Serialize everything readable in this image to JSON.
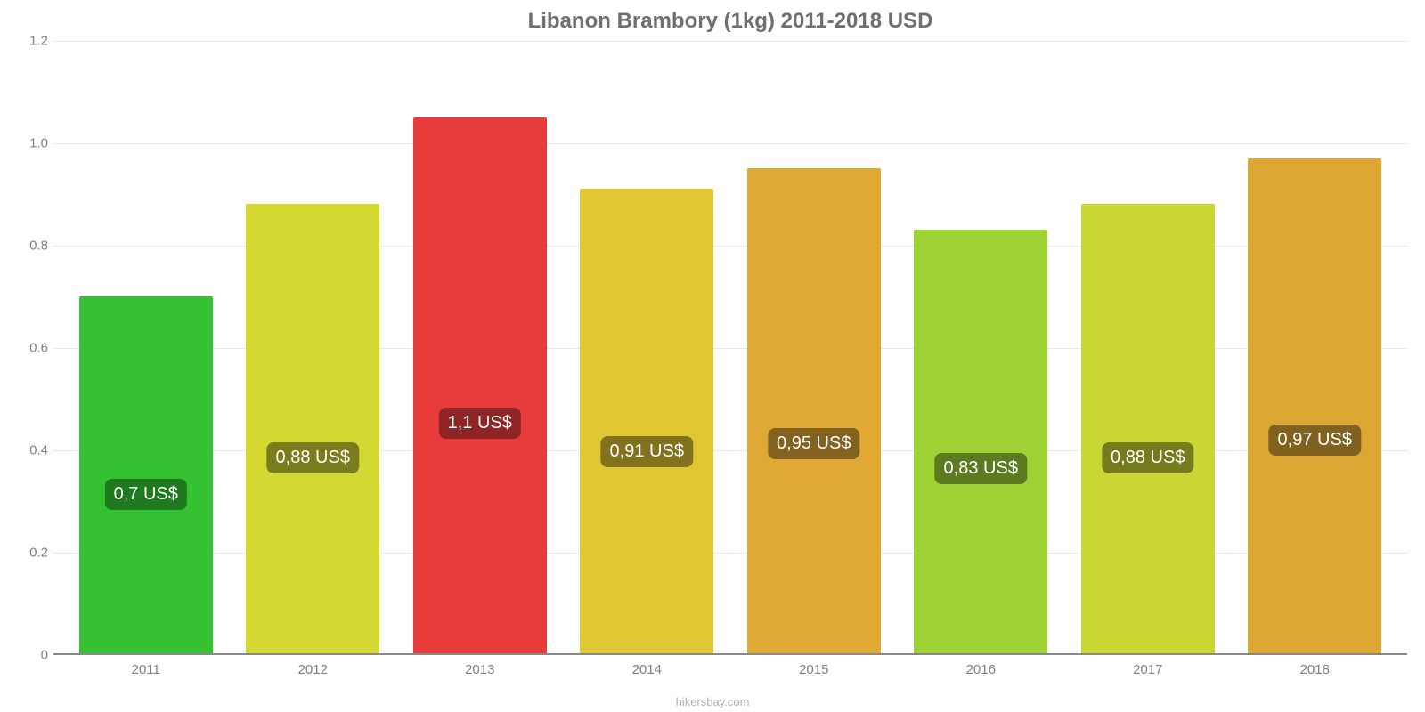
{
  "chart": {
    "type": "bar",
    "title": "Libanon Brambory (1kg) 2011-2018 USD",
    "title_fontsize": 24,
    "title_color": "#6f6f6f",
    "background_color": "#ffffff",
    "grid_color": "#e8e8e8",
    "axis_color": "#888888",
    "ylim": [
      0,
      1.2
    ],
    "ytick_step": 0.2,
    "yticks": [
      "0",
      "0.2",
      "0.4",
      "0.6",
      "0.8",
      "1.0",
      "1.2"
    ],
    "bar_width": 0.8,
    "label_fontsize": 20,
    "tick_fontsize": 15,
    "tick_color": "#808080",
    "categories": [
      "2011",
      "2012",
      "2013",
      "2014",
      "2015",
      "2016",
      "2017",
      "2018"
    ],
    "values": [
      0.7,
      0.88,
      1.05,
      0.91,
      0.95,
      0.83,
      0.88,
      0.97
    ],
    "value_labels": [
      "0,7 US$",
      "0,88 US$",
      "1,1 US$",
      "0,91 US$",
      "0,95 US$",
      "0,83 US$",
      "0,88 US$",
      "0,97 US$"
    ],
    "bar_colors": [
      "#34c233",
      "#d3d832",
      "#e83b3b",
      "#e0c633",
      "#e0a933",
      "#9ed134",
      "#cad633",
      "#dca833"
    ],
    "label_bg_colors": [
      "#1f7a1f",
      "#7a7d1e",
      "#8f2424",
      "#82721e",
      "#82621e",
      "#5c7a1f",
      "#757c1e",
      "#80621e"
    ],
    "label_bottom_pct": 40,
    "attribution": "hikersbay.com",
    "attribution_color": "#b0b0b0"
  }
}
